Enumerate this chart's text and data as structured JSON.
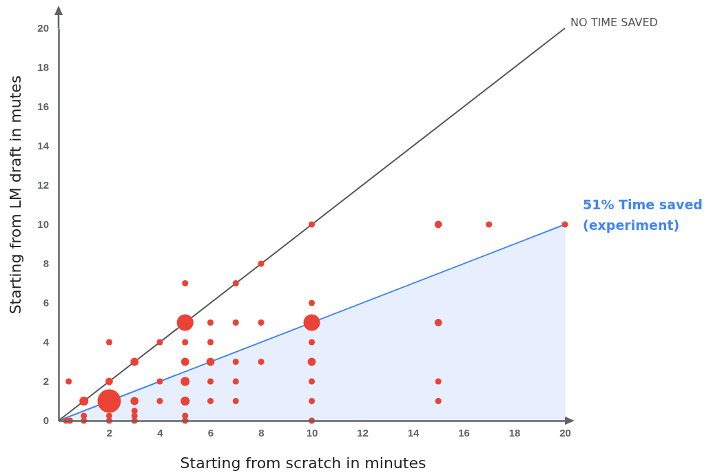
{
  "chart_data": {
    "type": "bubble",
    "xlabel": "Starting from scratch in minutes",
    "ylabel": "Starting from LM draft in mutes",
    "xlim": [
      0,
      20
    ],
    "ylim": [
      0,
      20
    ],
    "xticks": [
      2,
      4,
      6,
      8,
      10,
      12,
      14,
      16,
      18,
      20
    ],
    "yticks": [
      0,
      2,
      4,
      6,
      8,
      10,
      12,
      14,
      16,
      18,
      20
    ],
    "grid": false,
    "series": [
      {
        "type": "area",
        "name": "51% Time saved (experiment)",
        "color": "#4285f4",
        "x": [
          0,
          20
        ],
        "values": [
          0,
          10
        ]
      },
      {
        "type": "line",
        "name": "NO TIME SAVED",
        "color": "#555555",
        "x": [
          0,
          20
        ],
        "values": [
          0,
          20
        ]
      },
      {
        "color": "#ea4335",
        "x": [
          0.3,
          0.45,
          0.4,
          1,
          1,
          1,
          2,
          2,
          2,
          2,
          2,
          3,
          3,
          3,
          3,
          3,
          4,
          4,
          4,
          5,
          5,
          5,
          5,
          5,
          5,
          5,
          5,
          6,
          6,
          6,
          6,
          6,
          7,
          7,
          7,
          7,
          7,
          8,
          8,
          8,
          10,
          10,
          10,
          10,
          10,
          10,
          10,
          10,
          15,
          15,
          15,
          15,
          17,
          20
        ],
        "values": [
          0,
          0,
          2,
          1,
          0.25,
          0,
          1,
          2,
          4,
          0.25,
          0,
          3,
          1,
          0.5,
          0.25,
          0,
          4,
          2,
          1,
          7,
          5,
          4,
          3,
          2,
          1,
          0.25,
          0,
          5,
          4,
          3,
          2,
          1,
          7,
          5,
          3,
          2,
          1,
          8,
          5,
          3,
          10,
          6,
          5,
          4,
          3,
          2,
          1,
          0,
          10,
          5,
          2,
          1,
          10,
          10
        ],
        "sizes": [
          0.07,
          0.07,
          0.07,
          0.15,
          0.07,
          0.07,
          1,
          0.1,
          0.07,
          0.07,
          0.07,
          0.12,
          0.12,
          0.07,
          0.07,
          0.07,
          0.07,
          0.07,
          0.07,
          0.07,
          0.5,
          0.07,
          0.12,
          0.15,
          0.15,
          0.07,
          0.07,
          0.07,
          0.07,
          0.12,
          0.07,
          0.07,
          0.07,
          0.07,
          0.07,
          0.07,
          0.07,
          0.07,
          0.07,
          0.07,
          0.07,
          0.07,
          0.5,
          0.07,
          0.12,
          0.07,
          0.07,
          0.07,
          0.1,
          0.1,
          0.07,
          0.07,
          0.07,
          0.07
        ]
      }
    ]
  }
}
